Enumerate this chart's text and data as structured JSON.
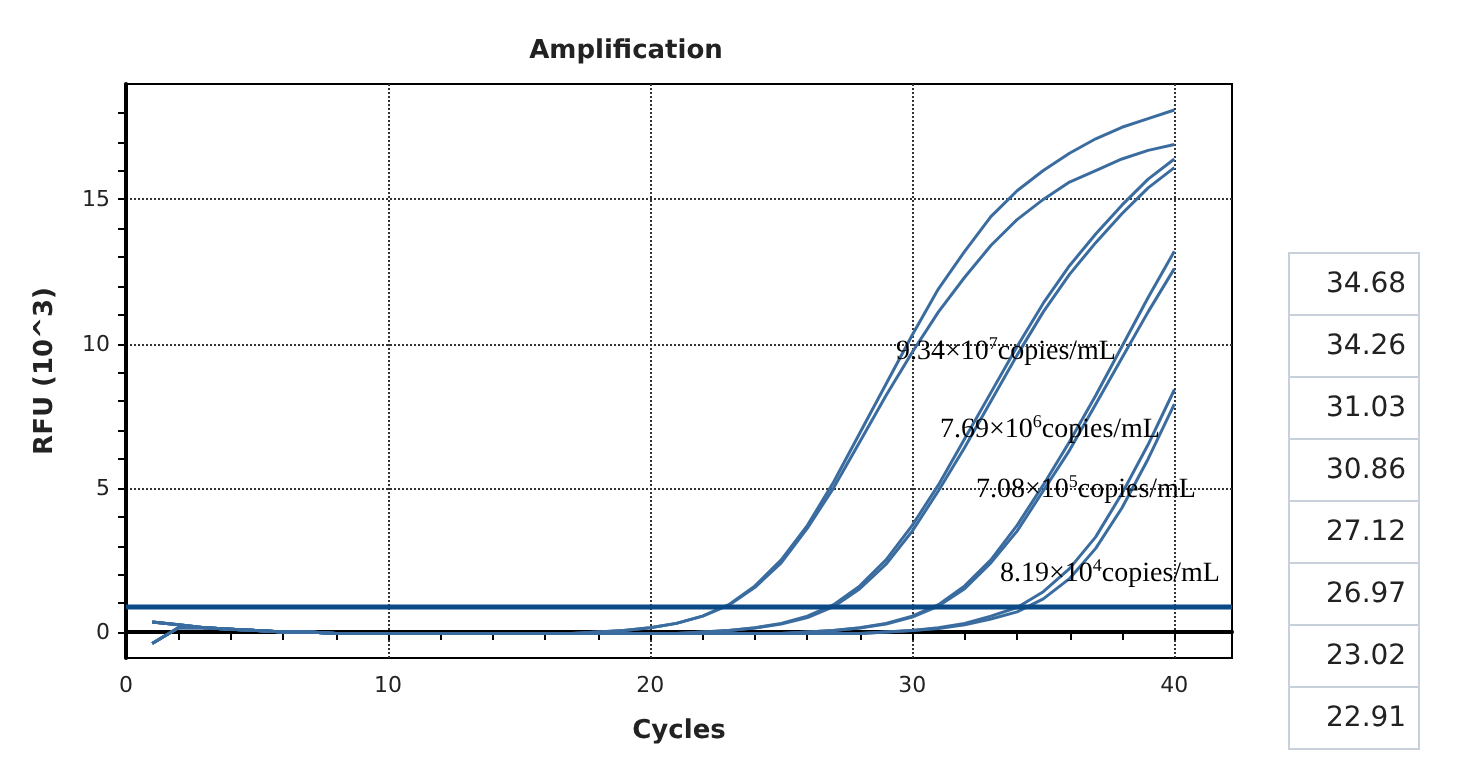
{
  "chart_data": {
    "type": "line",
    "title": "Amplification",
    "xlabel": "Cycles",
    "ylabel": "RFU (10^3)",
    "x": [
      1,
      2,
      3,
      4,
      5,
      6,
      7,
      8,
      9,
      10,
      11,
      12,
      13,
      14,
      15,
      16,
      17,
      18,
      19,
      20,
      21,
      22,
      23,
      24,
      25,
      26,
      27,
      28,
      29,
      30,
      31,
      32,
      33,
      34,
      35,
      36,
      37,
      38,
      39,
      40
    ],
    "series": [
      {
        "color": "#3a6c9f",
        "values": [
          0.35,
          0.25,
          0.15,
          0.1,
          0.05,
          0,
          0,
          -0.05,
          -0.05,
          -0.05,
          -0.05,
          -0.05,
          -0.05,
          -0.05,
          -0.05,
          -0.05,
          -0.05,
          0,
          0.05,
          0.15,
          0.3,
          0.55,
          0.95,
          1.6,
          2.5,
          3.7,
          5.2,
          6.9,
          8.6,
          10.3,
          11.9,
          13.2,
          14.4,
          15.3,
          16.0,
          16.6,
          17.1,
          17.5,
          17.8,
          18.1
        ]
      },
      {
        "color": "#3a6c9f",
        "values": [
          -0.4,
          0.15,
          0.15,
          0.1,
          0.05,
          0,
          0,
          -0.05,
          -0.05,
          -0.05,
          -0.05,
          -0.05,
          -0.05,
          -0.05,
          -0.05,
          -0.05,
          -0.05,
          0,
          0.05,
          0.15,
          0.3,
          0.55,
          0.93,
          1.55,
          2.4,
          3.6,
          5.0,
          6.6,
          8.2,
          9.7,
          11.1,
          12.3,
          13.4,
          14.3,
          15.0,
          15.6,
          16.0,
          16.4,
          16.7,
          16.9
        ]
      },
      {
        "color": "#3a6c9f",
        "values": [
          0.35,
          0.25,
          0.15,
          0.1,
          0.05,
          0,
          0,
          -0.05,
          -0.05,
          -0.05,
          -0.05,
          -0.05,
          -0.05,
          -0.05,
          -0.05,
          -0.05,
          -0.05,
          -0.05,
          -0.05,
          -0.05,
          -0.05,
          0,
          0.05,
          0.15,
          0.3,
          0.55,
          0.95,
          1.6,
          2.5,
          3.7,
          5.1,
          6.7,
          8.3,
          9.9,
          11.4,
          12.7,
          13.8,
          14.8,
          15.7,
          16.4
        ]
      },
      {
        "color": "#3a6c9f",
        "values": [
          -0.4,
          0.15,
          0.15,
          0.1,
          0.05,
          0,
          0,
          -0.05,
          -0.05,
          -0.05,
          -0.05,
          -0.05,
          -0.05,
          -0.05,
          -0.05,
          -0.05,
          -0.05,
          -0.05,
          -0.05,
          -0.05,
          -0.05,
          0,
          0.05,
          0.14,
          0.28,
          0.5,
          0.88,
          1.5,
          2.35,
          3.5,
          4.9,
          6.4,
          8.0,
          9.6,
          11.1,
          12.4,
          13.5,
          14.5,
          15.4,
          16.1
        ]
      },
      {
        "color": "#3a6c9f",
        "values": [
          0.35,
          0.25,
          0.15,
          0.1,
          0.05,
          0,
          0,
          -0.05,
          -0.05,
          -0.05,
          -0.05,
          -0.05,
          -0.05,
          -0.05,
          -0.05,
          -0.05,
          -0.05,
          -0.05,
          -0.05,
          -0.05,
          -0.05,
          -0.05,
          -0.05,
          -0.05,
          -0.05,
          0,
          0.05,
          0.15,
          0.3,
          0.55,
          0.95,
          1.6,
          2.5,
          3.7,
          5.1,
          6.6,
          8.2,
          9.9,
          11.6,
          13.2
        ]
      },
      {
        "color": "#3a6c9f",
        "values": [
          -0.4,
          0.15,
          0.15,
          0.1,
          0.05,
          0,
          0,
          -0.05,
          -0.05,
          -0.05,
          -0.05,
          -0.05,
          -0.05,
          -0.05,
          -0.05,
          -0.05,
          -0.05,
          -0.05,
          -0.05,
          -0.05,
          -0.05,
          -0.05,
          -0.05,
          -0.05,
          -0.05,
          0,
          0.05,
          0.14,
          0.28,
          0.52,
          0.9,
          1.5,
          2.4,
          3.5,
          4.9,
          6.3,
          7.9,
          9.5,
          11.1,
          12.6
        ]
      },
      {
        "color": "#3a6c9f",
        "values": [
          0.35,
          0.25,
          0.15,
          0.1,
          0.05,
          0,
          0,
          -0.05,
          -0.05,
          -0.05,
          -0.05,
          -0.05,
          -0.05,
          -0.05,
          -0.05,
          -0.05,
          -0.05,
          -0.05,
          -0.05,
          -0.05,
          -0.05,
          -0.05,
          -0.05,
          -0.05,
          -0.05,
          -0.05,
          -0.05,
          -0.05,
          0,
          0.05,
          0.15,
          0.3,
          0.55,
          0.85,
          1.4,
          2.2,
          3.3,
          4.8,
          6.5,
          8.4
        ]
      },
      {
        "color": "#3a6c9f",
        "values": [
          -0.4,
          0.15,
          0.15,
          0.1,
          0.05,
          0,
          0,
          -0.05,
          -0.05,
          -0.05,
          -0.05,
          -0.05,
          -0.05,
          -0.05,
          -0.05,
          -0.05,
          -0.05,
          -0.05,
          -0.05,
          -0.05,
          -0.05,
          -0.05,
          -0.05,
          -0.05,
          -0.05,
          -0.05,
          -0.05,
          -0.05,
          0,
          0.05,
          0.12,
          0.25,
          0.45,
          0.7,
          1.15,
          1.85,
          2.9,
          4.3,
          6.0,
          7.9
        ]
      }
    ],
    "ref_lines": [
      {
        "axis": "y",
        "value": 0.92,
        "color": "#0b4a86"
      }
    ],
    "annotations": [
      "9.34×10$^{7}$copies/mL",
      "7.69×10$^{6}$copies/mL",
      "7.08×10$^{5}$copies/mL",
      "8.19×10$^{4}$copies/mL",
      "34.68",
      "34.26",
      "31.03",
      "30.86",
      "27.12",
      "26.97",
      "23.02",
      "22.91"
    ],
    "xlim": [
      0,
      42.2
    ],
    "xticks": [
      0,
      {
        "value": 2,
        "label": null
      },
      {
        "value": 4,
        "label": null
      },
      {
        "value": 6,
        "label": null
      },
      {
        "value": 8,
        "label": null
      },
      10,
      {
        "value": 12,
        "label": null
      },
      {
        "value": 14,
        "label": null
      },
      {
        "value": 16,
        "label": null
      },
      {
        "value": 18,
        "label": null
      },
      20,
      {
        "value": 22,
        "label": null
      },
      {
        "value": 24,
        "label": null
      },
      {
        "value": 26,
        "label": null
      },
      {
        "value": 28,
        "label": null
      },
      30,
      {
        "value": 32,
        "label": null
      },
      {
        "value": 34,
        "label": null
      },
      {
        "value": 36,
        "label": null
      },
      {
        "value": 38,
        "label": null
      },
      40
    ],
    "ylim": [
      -0.9,
      19
    ],
    "yticks": [
      0,
      {
        "value": 1,
        "label": null
      },
      {
        "value": 2,
        "label": null
      },
      {
        "value": 3,
        "label": null
      },
      {
        "value": 4,
        "label": null
      },
      5,
      {
        "value": 6,
        "label": null
      },
      {
        "value": 7,
        "label": null
      },
      {
        "value": 8,
        "label": null
      },
      {
        "value": 9,
        "label": null
      },
      10,
      {
        "value": 11,
        "label": null
      },
      {
        "value": 12,
        "label": null
      },
      {
        "value": 13,
        "label": null
      },
      {
        "value": 14,
        "label": null
      },
      15,
      {
        "value": 16,
        "label": null
      },
      {
        "value": 17,
        "label": null
      },
      {
        "value": 18,
        "label": null
      }
    ],
    "grid": true,
    "marker": "none",
    "line_style": "solid"
  }
}
